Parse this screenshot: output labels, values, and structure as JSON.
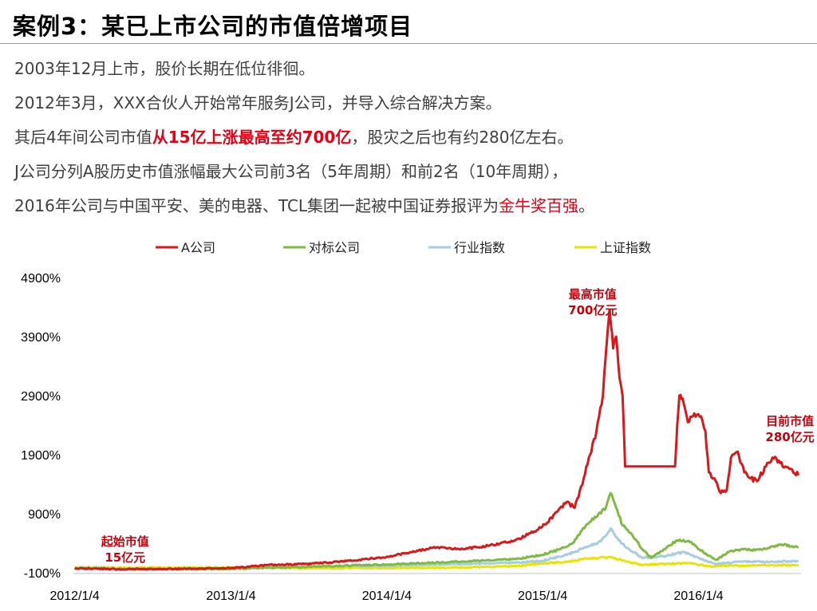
{
  "slide": {
    "title": "案例3：某已上市公司的市值倍增项目",
    "lines": [
      {
        "parts": [
          {
            "text": "2003年12月上市，股价长期在低位徘徊。",
            "hl": ""
          }
        ]
      },
      {
        "parts": [
          {
            "text": "2012年3月，XXX合伙人开始常年服务J公司，并导入综合解决方案。",
            "hl": ""
          }
        ]
      },
      {
        "parts": [
          {
            "text": "其后4年间公司市值",
            "hl": ""
          },
          {
            "text": "从15亿上涨最高至约700亿",
            "hl": "bold"
          },
          {
            "text": "，股灾之后也有约280亿左右。",
            "hl": ""
          }
        ]
      },
      {
        "parts": [
          {
            "text": "J公司分列A股历史市值涨幅最大公司前3名（5年周期）和前2名（10年周期），",
            "hl": ""
          }
        ]
      },
      {
        "parts": [
          {
            "text": "2016年公司与中国平安、美的电器、TCL集团一起被中国证券报评为",
            "hl": ""
          },
          {
            "text": "金牛奖百强",
            "hl": "plain"
          },
          {
            "text": "。",
            "hl": ""
          }
        ]
      }
    ]
  },
  "chart_data": {
    "type": "line",
    "title": "",
    "xlabel": "",
    "ylabel": "",
    "x_ticks": [
      "2012/1/4",
      "2013/1/4",
      "2014/1/4",
      "2015/1/4",
      "2016/1/4"
    ],
    "y_ticks": [
      "-100%",
      "900%",
      "1900%",
      "2900%",
      "3900%",
      "4900%"
    ],
    "ylim": [
      -100,
      4900
    ],
    "xlim": [
      "2012/1/1",
      "2016/8/31"
    ],
    "grid": false,
    "legend_position": "top",
    "series": [
      {
        "name": "A公司",
        "color": "#d7191c",
        "points": [
          [
            "2012/1/4",
            -25
          ],
          [
            "2012/4/15",
            -40
          ],
          [
            "2012/8/1",
            -35
          ],
          [
            "2012/11/1",
            -30
          ],
          [
            "2013/1/4",
            -20
          ],
          [
            "2013/4/1",
            30
          ],
          [
            "2013/7/1",
            50
          ],
          [
            "2013/9/1",
            80
          ],
          [
            "2013/11/1",
            120
          ],
          [
            "2014/1/4",
            170
          ],
          [
            "2014/3/1",
            250
          ],
          [
            "2014/5/1",
            330
          ],
          [
            "2014/7/1",
            300
          ],
          [
            "2014/9/1",
            360
          ],
          [
            "2014/11/1",
            450
          ],
          [
            "2014/12/15",
            600
          ],
          [
            "2015/1/15",
            750
          ],
          [
            "2015/2/1",
            900
          ],
          [
            "2015/3/1",
            1100
          ],
          [
            "2015/3/20",
            1000
          ],
          [
            "2015/4/10",
            1500
          ],
          [
            "2015/4/25",
            1900
          ],
          [
            "2015/5/10",
            2300
          ],
          [
            "2015/5/25",
            2900
          ],
          [
            "2015/6/3",
            3800
          ],
          [
            "2015/6/10",
            4350
          ],
          [
            "2015/6/18",
            3700
          ],
          [
            "2015/6/25",
            3900
          ],
          [
            "2015/7/3",
            3200
          ],
          [
            "2015/7/10",
            2900
          ],
          [
            "2015/7/16",
            1700
          ],
          [
            "2015/8/1",
            1700
          ],
          [
            "2015/10/1",
            1700
          ],
          [
            "2015/11/10",
            1700
          ],
          [
            "2015/11/15",
            2400
          ],
          [
            "2015/11/20",
            2900
          ],
          [
            "2015/11/28",
            2850
          ],
          [
            "2015/12/10",
            2450
          ],
          [
            "2015/12/25",
            2600
          ],
          [
            "2016/1/10",
            2550
          ],
          [
            "2016/1/20",
            2300
          ],
          [
            "2016/1/28",
            1600
          ],
          [
            "2016/2/10",
            1500
          ],
          [
            "2016/2/25",
            1250
          ],
          [
            "2016/3/10",
            1300
          ],
          [
            "2016/3/20",
            1850
          ],
          [
            "2016/4/5",
            1950
          ],
          [
            "2016/4/20",
            1600
          ],
          [
            "2016/5/5",
            1500
          ],
          [
            "2016/5/20",
            1450
          ],
          [
            "2016/6/10",
            1700
          ],
          [
            "2016/6/25",
            1850
          ],
          [
            "2016/7/10",
            1800
          ],
          [
            "2016/7/25",
            1700
          ],
          [
            "2016/8/10",
            1650
          ],
          [
            "2016/8/25",
            1550
          ]
        ]
      },
      {
        "name": "对标公司",
        "color": "#7fba42",
        "points": [
          [
            "2012/1/4",
            -20
          ],
          [
            "2012/6/1",
            -40
          ],
          [
            "2013/1/4",
            -35
          ],
          [
            "2013/6/1",
            -5
          ],
          [
            "2014/1/4",
            40
          ],
          [
            "2014/6/1",
            80
          ],
          [
            "2014/11/1",
            130
          ],
          [
            "2015/1/1",
            200
          ],
          [
            "2015/2/15",
            300
          ],
          [
            "2015/3/15",
            400
          ],
          [
            "2015/4/15",
            700
          ],
          [
            "2015/5/15",
            900
          ],
          [
            "2015/6/1",
            1000
          ],
          [
            "2015/6/12",
            1250
          ],
          [
            "2015/6/25",
            1000
          ],
          [
            "2015/7/10",
            700
          ],
          [
            "2015/8/1",
            550
          ],
          [
            "2015/8/25",
            300
          ],
          [
            "2015/9/15",
            150
          ],
          [
            "2015/10/15",
            300
          ],
          [
            "2015/11/15",
            450
          ],
          [
            "2015/12/15",
            420
          ],
          [
            "2016/1/15",
            250
          ],
          [
            "2016/2/15",
            120
          ],
          [
            "2016/3/15",
            250
          ],
          [
            "2016/4/15",
            300
          ],
          [
            "2016/5/15",
            280
          ],
          [
            "2016/6/15",
            320
          ],
          [
            "2016/7/15",
            380
          ],
          [
            "2016/8/25",
            330
          ]
        ]
      },
      {
        "name": "行业指数",
        "color": "#a6cde0",
        "points": [
          [
            "2012/1/4",
            -15
          ],
          [
            "2012/6/1",
            -30
          ],
          [
            "2013/1/4",
            -25
          ],
          [
            "2013/6/1",
            0
          ],
          [
            "2014/1/4",
            20
          ],
          [
            "2014/6/1",
            40
          ],
          [
            "2014/11/1",
            70
          ],
          [
            "2015/1/1",
            100
          ],
          [
            "2015/3/1",
            200
          ],
          [
            "2015/4/15",
            330
          ],
          [
            "2015/5/20",
            430
          ],
          [
            "2015/6/12",
            650
          ],
          [
            "2015/6/25",
            500
          ],
          [
            "2015/7/15",
            350
          ],
          [
            "2015/8/25",
            150
          ],
          [
            "2015/10/15",
            180
          ],
          [
            "2015/12/1",
            250
          ],
          [
            "2016/1/15",
            120
          ],
          [
            "2016/2/15",
            50
          ],
          [
            "2016/4/15",
            90
          ],
          [
            "2016/6/15",
            80
          ],
          [
            "2016/8/25",
            100
          ]
        ]
      },
      {
        "name": "上证指数",
        "color": "#e6e600",
        "points": [
          [
            "2012/1/4",
            -5
          ],
          [
            "2012/6/1",
            -15
          ],
          [
            "2013/1/4",
            -10
          ],
          [
            "2013/6/1",
            -25
          ],
          [
            "2014/1/4",
            -20
          ],
          [
            "2014/6/1",
            -15
          ],
          [
            "2014/11/1",
            10
          ],
          [
            "2015/1/1",
            60
          ],
          [
            "2015/3/1",
            80
          ],
          [
            "2015/4/15",
            140
          ],
          [
            "2015/6/12",
            160
          ],
          [
            "2015/7/15",
            100
          ],
          [
            "2015/8/25",
            30
          ],
          [
            "2015/10/15",
            50
          ],
          [
            "2015/12/15",
            60
          ],
          [
            "2016/1/28",
            10
          ],
          [
            "2016/3/15",
            20
          ],
          [
            "2016/6/15",
            25
          ],
          [
            "2016/8/25",
            30
          ]
        ]
      }
    ],
    "annotations": [
      {
        "lines": [
          "起始市值",
          "15亿元"
        ],
        "x": "2012/5/1",
        "y": 360
      },
      {
        "lines": [
          "最高市值",
          "700亿元"
        ],
        "x": "2015/5/1",
        "y": 4550
      },
      {
        "lines": [
          "目前市值",
          "280亿元"
        ],
        "x": "2016/8/5",
        "y": 2400
      }
    ]
  }
}
